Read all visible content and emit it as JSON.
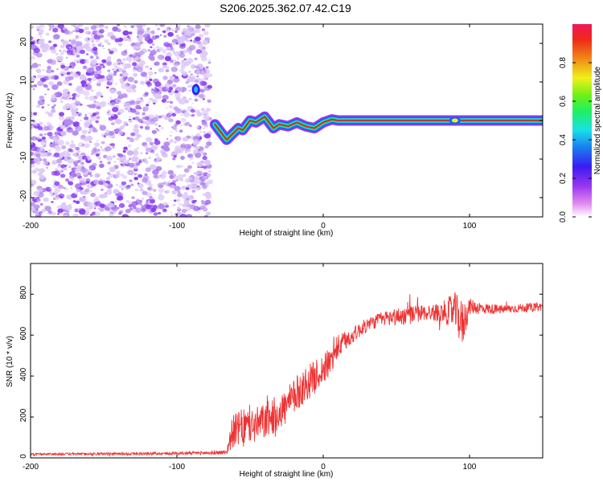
{
  "figure": {
    "title": "S206.2025.362.07.42.C19"
  },
  "colors": {
    "snr_line": "#ee3333",
    "frame": "#000000",
    "speckle": "#8a3ff0",
    "speckle_light": "#c7a6f5"
  },
  "chart_data": [
    {
      "type": "heatmap",
      "name": "spectrogram",
      "title": "S206.2025.362.07.42.C19",
      "xlabel": "Height of straight line (km)",
      "ylabel": "Frequency (Hz)",
      "xlim": [
        -200,
        150
      ],
      "ylim": [
        -25,
        25
      ],
      "xticks": [
        -200,
        -100,
        0,
        100
      ],
      "xtick_labels": [
        "-200",
        "-100",
        "0",
        "100"
      ],
      "yticks": [
        -20,
        -10,
        0,
        10,
        20
      ],
      "ytick_labels": [
        "-20",
        "-10",
        "0",
        "10",
        "20"
      ],
      "colorbar": {
        "label": "Normalized spectral amplitude",
        "range": [
          0,
          1
        ],
        "ticks": [
          0.0,
          0.2,
          0.4,
          0.6,
          0.8
        ],
        "tick_labels": [
          "0.0",
          "0.2",
          "0.4",
          "0.6",
          "0.8"
        ]
      },
      "noise_region_x": [
        -200,
        -74
      ],
      "noise_spot_x": -87,
      "noise_spot_freq": 8,
      "signal_track": [
        {
          "x": -74,
          "freq": -1
        },
        {
          "x": -70,
          "freq": -3
        },
        {
          "x": -66,
          "freq": -5
        },
        {
          "x": -62,
          "freq": -3.5
        },
        {
          "x": -58,
          "freq": -2
        },
        {
          "x": -55,
          "freq": -2.5
        },
        {
          "x": -50,
          "freq": 0
        },
        {
          "x": -46,
          "freq": -0.5
        },
        {
          "x": -40,
          "freq": 1
        },
        {
          "x": -34,
          "freq": -2
        },
        {
          "x": -30,
          "freq": -1
        },
        {
          "x": -24,
          "freq": -1.5
        },
        {
          "x": -18,
          "freq": -0.5
        },
        {
          "x": -12,
          "freq": -1.5
        },
        {
          "x": -6,
          "freq": -2
        },
        {
          "x": 0,
          "freq": -0.5
        },
        {
          "x": 6,
          "freq": 0.3
        },
        {
          "x": 10,
          "freq": 0
        },
        {
          "x": 150,
          "freq": 0
        }
      ],
      "marker_x": 90
    },
    {
      "type": "line",
      "name": "snr",
      "xlabel": "Height of straight line (km)",
      "ylabel": "SNR (10 * v/v)",
      "xlim": [
        -200,
        150
      ],
      "ylim": [
        0,
        950
      ],
      "xticks": [
        -200,
        -100,
        0,
        100
      ],
      "xtick_labels": [
        "-200",
        "-100",
        "0",
        "100"
      ],
      "yticks": [
        0,
        200,
        400,
        600,
        800
      ],
      "ytick_labels": [
        "0",
        "200",
        "400",
        "600",
        "800"
      ],
      "series": [
        {
          "name": "SNR",
          "x": [
            -200,
            -150,
            -100,
            -75,
            -66,
            -62,
            -55,
            -45,
            -35,
            -25,
            -15,
            -5,
            5,
            10,
            20,
            30,
            40,
            50,
            60,
            70,
            80,
            90,
            95,
            100,
            110,
            120,
            130,
            140,
            150
          ],
          "y": [
            18,
            20,
            22,
            25,
            28,
            130,
            150,
            160,
            200,
            250,
            340,
            400,
            470,
            540,
            600,
            650,
            680,
            690,
            700,
            710,
            710,
            720,
            650,
            740,
            730,
            725,
            730,
            735,
            740
          ],
          "spread": [
            5,
            6,
            7,
            9,
            12,
            80,
            90,
            90,
            90,
            90,
            90,
            80,
            70,
            60,
            40,
            35,
            35,
            45,
            45,
            40,
            45,
            90,
            120,
            40,
            28,
            22,
            22,
            20,
            20
          ]
        }
      ]
    }
  ]
}
